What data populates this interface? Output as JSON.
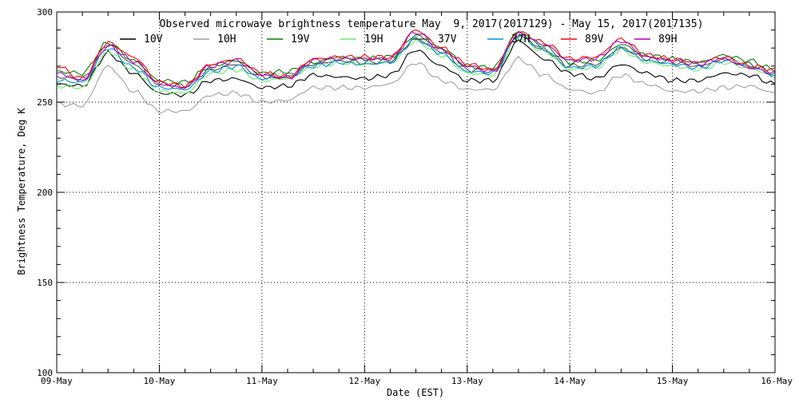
{
  "chart_data": {
    "type": "line",
    "title": "Observed microwave brightness temperature May  9, 2017(2017129) - May 15, 2017(2017135)",
    "xlabel": "Date (EST)",
    "ylabel": "Brightness Temperature, Deg K",
    "ylim": [
      100,
      300
    ],
    "yticks": [
      100,
      150,
      200,
      250,
      300
    ],
    "xlim": [
      "2017-05-09",
      "2017-05-16"
    ],
    "x_tick_labels": [
      "09-May",
      "10-May",
      "11-May",
      "12-May",
      "13-May",
      "14-May",
      "15-May",
      "16-May"
    ],
    "grid": true,
    "legend_position": "top",
    "x": [
      "2017-05-09 00:00",
      "2017-05-09 06:00",
      "2017-05-09 12:00",
      "2017-05-09 18:00",
      "2017-05-10 00:00",
      "2017-05-10 06:00",
      "2017-05-10 12:00",
      "2017-05-10 18:00",
      "2017-05-11 00:00",
      "2017-05-11 06:00",
      "2017-05-11 12:00",
      "2017-05-11 18:00",
      "2017-05-12 00:00",
      "2017-05-12 06:00",
      "2017-05-12 12:00",
      "2017-05-12 18:00",
      "2017-05-13 00:00",
      "2017-05-13 06:00",
      "2017-05-13 12:00",
      "2017-05-13 18:00",
      "2017-05-14 00:00",
      "2017-05-14 06:00",
      "2017-05-14 12:00",
      "2017-05-14 18:00",
      "2017-05-15 00:00",
      "2017-05-15 06:00",
      "2017-05-15 12:00",
      "2017-05-15 18:00",
      "2017-05-16 00:00"
    ],
    "series": [
      {
        "name": "10V",
        "color": "#000000",
        "values": [
          260,
          259,
          277,
          266,
          255,
          254,
          262,
          263,
          258,
          259,
          265,
          264,
          263,
          265,
          279,
          270,
          262,
          262,
          284,
          274,
          266,
          263,
          271,
          266,
          262,
          262,
          266,
          265,
          260
        ]
      },
      {
        "name": "10H",
        "color": "#a0a0a0",
        "values": [
          249,
          248,
          270,
          256,
          245,
          245,
          254,
          255,
          250,
          251,
          258,
          258,
          258,
          260,
          272,
          262,
          257,
          257,
          274,
          265,
          257,
          255,
          265,
          260,
          256,
          256,
          258,
          259,
          255
        ]
      },
      {
        "name": "19V",
        "color": "#008000",
        "values": [
          267,
          266,
          283,
          273,
          262,
          261,
          270,
          273,
          266,
          267,
          272,
          275,
          274,
          275,
          287,
          280,
          270,
          269,
          289,
          281,
          272,
          273,
          282,
          276,
          274,
          272,
          276,
          273,
          268
        ]
      },
      {
        "name": "19H",
        "color": "#66ee66",
        "values": [
          259,
          258,
          278,
          268,
          256,
          255,
          266,
          268,
          262,
          263,
          270,
          272,
          271,
          272,
          284,
          276,
          266,
          265,
          286,
          278,
          268,
          269,
          279,
          272,
          270,
          268,
          272,
          269,
          264
        ]
      },
      {
        "name": "37V",
        "color": "#505050",
        "values": [
          264,
          263,
          282,
          271,
          260,
          259,
          268,
          271,
          264,
          265,
          271,
          273,
          272,
          273,
          285,
          278,
          268,
          267,
          287,
          279,
          270,
          271,
          280,
          274,
          272,
          270,
          274,
          271,
          266
        ]
      },
      {
        "name": "37H",
        "color": "#0090d0",
        "values": [
          262,
          261,
          280,
          269,
          258,
          257,
          267,
          270,
          263,
          264,
          270,
          272,
          271,
          272,
          285,
          277,
          267,
          266,
          287,
          279,
          269,
          270,
          280,
          273,
          271,
          269,
          273,
          270,
          265
        ]
      },
      {
        "name": "89V",
        "color": "#ff0000",
        "values": [
          270,
          263,
          283,
          275,
          261,
          259,
          271,
          274,
          266,
          264,
          274,
          275,
          275,
          275,
          290,
          280,
          271,
          268,
          289,
          283,
          274,
          275,
          285,
          276,
          274,
          272,
          275,
          270,
          268
        ]
      },
      {
        "name": "89H",
        "color": "#b000c0",
        "values": [
          266,
          262,
          281,
          273,
          260,
          258,
          270,
          273,
          265,
          263,
          273,
          274,
          274,
          274,
          289,
          279,
          270,
          267,
          288,
          282,
          273,
          274,
          284,
          275,
          273,
          271,
          274,
          269,
          266
        ]
      }
    ]
  }
}
